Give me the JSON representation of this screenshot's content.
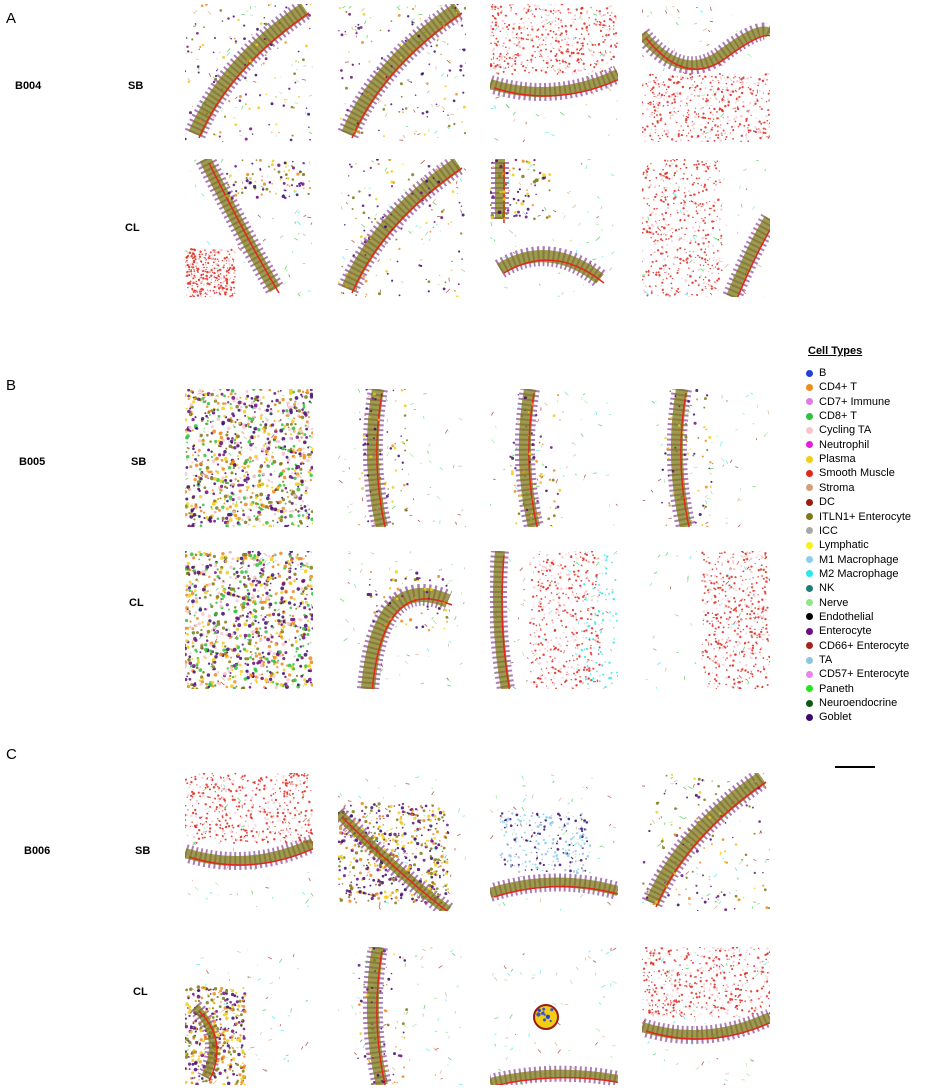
{
  "panels": [
    {
      "letter": "A",
      "donor": "B004",
      "rows": [
        {
          "tissue": "SB"
        },
        {
          "tissue": "CL"
        }
      ]
    },
    {
      "letter": "B",
      "donor": "B005",
      "rows": [
        {
          "tissue": "SB"
        },
        {
          "tissue": "CL"
        }
      ]
    },
    {
      "letter": "C",
      "donor": "B006",
      "rows": [
        {
          "tissue": "SB"
        },
        {
          "tissue": "CL"
        }
      ]
    }
  ],
  "legend": {
    "title": "Cell Types",
    "items": [
      {
        "label": "B",
        "color": "#1f3fe0"
      },
      {
        "label": "CD4+ T",
        "color": "#f08a1c"
      },
      {
        "label": "CD7+ Immune",
        "color": "#e07be0"
      },
      {
        "label": "CD8+ T",
        "color": "#2ec23a"
      },
      {
        "label": "Cycling TA",
        "color": "#f6c6cc"
      },
      {
        "label": "Neutrophil",
        "color": "#e81ce0"
      },
      {
        "label": "Plasma",
        "color": "#f2cd18"
      },
      {
        "label": "Smooth Muscle",
        "color": "#e0281c"
      },
      {
        "label": "Stroma",
        "color": "#d4a07a"
      },
      {
        "label": "DC",
        "color": "#9a1c10"
      },
      {
        "label": "ITLN1+ Enterocyte",
        "color": "#7c7a14"
      },
      {
        "label": "ICC",
        "color": "#a8a8a8"
      },
      {
        "label": "Lymphatic",
        "color": "#f6f01c"
      },
      {
        "label": "M1 Macrophage",
        "color": "#8ad0ea"
      },
      {
        "label": "M2 Macrophage",
        "color": "#2ee6ea"
      },
      {
        "label": "NK",
        "color": "#1c7e78"
      },
      {
        "label": "Nerve",
        "color": "#8ee68a"
      },
      {
        "label": "Endothelial",
        "color": "#000000"
      },
      {
        "label": "Enterocyte",
        "color": "#6a0f7e"
      },
      {
        "label": "CD66+ Enterocyte",
        "color": "#a3241a"
      },
      {
        "label": "TA",
        "color": "#90c4e4"
      },
      {
        "label": "CD57+ Enterocyte",
        "color": "#ea84ea"
      },
      {
        "label": "Paneth",
        "color": "#1ce81c"
      },
      {
        "label": "Neuroendocrine",
        "color": "#0e5a14"
      },
      {
        "label": "Goblet",
        "color": "#3c0a6e"
      }
    ]
  }
}
